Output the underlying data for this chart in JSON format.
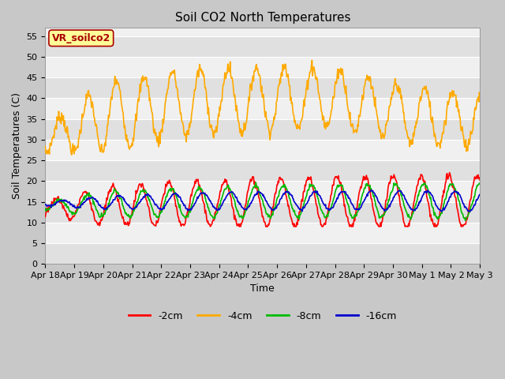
{
  "title": "Soil CO2 North Temperatures",
  "ylabel": "Soil Temperatures (C)",
  "xlabel": "Time",
  "ylim": [
    0,
    57
  ],
  "yticks": [
    0,
    5,
    10,
    15,
    20,
    25,
    30,
    35,
    40,
    45,
    50,
    55
  ],
  "xtick_labels": [
    "Apr 18",
    "Apr 19",
    "Apr 20",
    "Apr 21",
    "Apr 22",
    "Apr 23",
    "Apr 24",
    "Apr 25",
    "Apr 26",
    "Apr 27",
    "Apr 28",
    "Apr 29",
    "Apr 30",
    "May 1",
    "May 2",
    "May 3"
  ],
  "colors": {
    "2cm": "#ff0000",
    "4cm": "#ffaa00",
    "8cm": "#00bb00",
    "16cm": "#0000cc"
  },
  "legend_labels": [
    "-2cm",
    "-4cm",
    "-8cm",
    "-16cm"
  ],
  "annotation_text": "VR_soilco2",
  "annotation_color": "#aa0000",
  "annotation_bg": "#ffff99",
  "title_fontsize": 11,
  "axis_fontsize": 9,
  "tick_fontsize": 8,
  "n_days": 15.5,
  "fig_bg": "#c8c8c8",
  "plot_bg_light": "#f0f0f0",
  "plot_bg_dark": "#e0e0e0",
  "grid_color": "#ffffff"
}
